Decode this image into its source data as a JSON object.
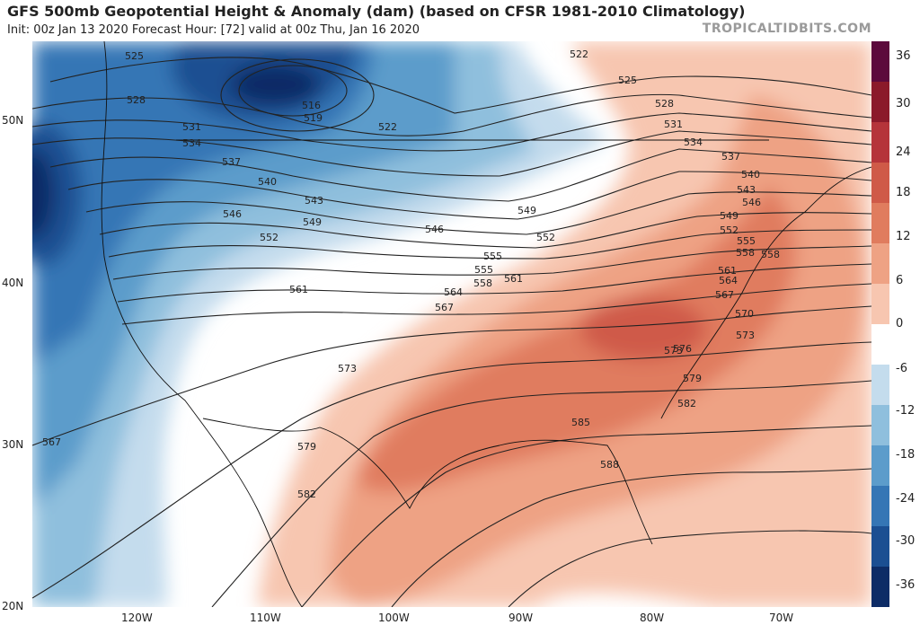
{
  "header": {
    "title": "GFS 500mb Geopotential Height & Anomaly (dam) (based on CFSR 1981-2010 Climatology)",
    "subtitle": "Init: 00z Jan 13 2020   Forecast Hour: [72]   valid at 00z Thu, Jan 16 2020",
    "brand": "TROPICALTIDBITS.COM"
  },
  "colorbar": {
    "labels": [
      "36",
      "30",
      "24",
      "18",
      "12",
      "6",
      "0",
      "-6",
      "-12",
      "-18",
      "-24",
      "-30",
      "-36"
    ],
    "colors": [
      "#5c0a3c",
      "#8b1a2a",
      "#b5343a",
      "#cf5a48",
      "#e07c5e",
      "#eea284",
      "#f7c6b0",
      "#ffffff",
      "#c4dced",
      "#8fbfdd",
      "#5c9ccb",
      "#3576b5",
      "#1b4f92",
      "#0d2c66"
    ]
  },
  "axes": {
    "lat_labels": [
      "50N",
      "40N",
      "30N",
      "20N"
    ],
    "lon_labels": [
      "120W",
      "110W",
      "100W",
      "90W",
      "80W",
      "70W"
    ]
  },
  "contour_labels": [
    "525",
    "516",
    "519",
    "522",
    "522",
    "525",
    "528",
    "528",
    "531",
    "531",
    "534",
    "534",
    "537",
    "537",
    "540",
    "540",
    "543",
    "543",
    "546",
    "546",
    "546",
    "549",
    "549",
    "549",
    "552",
    "552",
    "552",
    "555",
    "555",
    "555",
    "558",
    "558",
    "558",
    "561",
    "561",
    "561",
    "564",
    "564",
    "567",
    "567",
    "567",
    "570",
    "573",
    "573",
    "573",
    "576",
    "579",
    "579",
    "582",
    "582",
    "585",
    "588"
  ]
}
